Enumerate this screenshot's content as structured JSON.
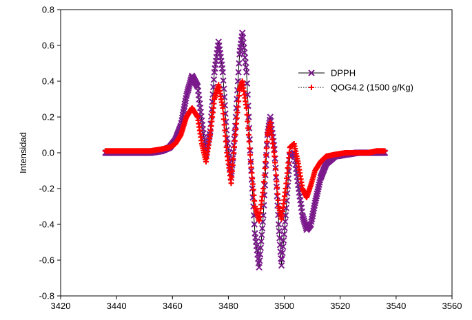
{
  "chart_data": {
    "type": "scatter",
    "title": "",
    "xlabel": "",
    "ylabel": "Intensidad",
    "xlim": [
      3420,
      3560
    ],
    "ylim": [
      -0.8,
      0.8
    ],
    "xticks": [
      3420,
      3440,
      3460,
      3480,
      3500,
      3520,
      3540,
      3560
    ],
    "yticks": [
      -0.8,
      -0.6,
      -0.4,
      -0.2,
      0.0,
      0.2,
      0.4,
      0.6,
      0.8
    ],
    "ytick_labels": [
      "-0.8",
      "-0.6",
      "-0.4",
      "-0.2",
      "0.0",
      "0.2",
      "0.4",
      "0.6",
      "0.8"
    ],
    "grid": false,
    "legend_position": "top-right",
    "series": [
      {
        "name": "DPPH",
        "color": "#7b1a8c",
        "marker": "x",
        "line": "solid",
        "points": [
          [
            3436,
            0.0
          ],
          [
            3440,
            0.0
          ],
          [
            3444,
            0.0
          ],
          [
            3448,
            0.0
          ],
          [
            3452,
            0.0
          ],
          [
            3456,
            0.01
          ],
          [
            3459,
            0.03
          ],
          [
            3461,
            0.07
          ],
          [
            3463,
            0.15
          ],
          [
            3465,
            0.32
          ],
          [
            3467,
            0.43
          ],
          [
            3469,
            0.37
          ],
          [
            3470.5,
            0.18
          ],
          [
            3472,
            -0.01
          ],
          [
            3473.5,
            0.12
          ],
          [
            3475,
            0.45
          ],
          [
            3476.5,
            0.62
          ],
          [
            3478,
            0.45
          ],
          [
            3479.5,
            0.08
          ],
          [
            3481,
            -0.14
          ],
          [
            3482.5,
            0.15
          ],
          [
            3484,
            0.55
          ],
          [
            3485,
            0.67
          ],
          [
            3486.5,
            0.45
          ],
          [
            3488,
            -0.05
          ],
          [
            3489.5,
            -0.45
          ],
          [
            3491,
            -0.64
          ],
          [
            3492.5,
            -0.35
          ],
          [
            3494,
            0.1
          ],
          [
            3495,
            0.2
          ],
          [
            3496.5,
            0.02
          ],
          [
            3498,
            -0.4
          ],
          [
            3499,
            -0.63
          ],
          [
            3500.5,
            -0.35
          ],
          [
            3502,
            -0.02
          ],
          [
            3503.5,
            0.0
          ],
          [
            3505,
            -0.18
          ],
          [
            3506.5,
            -0.35
          ],
          [
            3508,
            -0.43
          ],
          [
            3509.5,
            -0.4
          ],
          [
            3511,
            -0.28
          ],
          [
            3513,
            -0.14
          ],
          [
            3515,
            -0.06
          ],
          [
            3518,
            -0.02
          ],
          [
            3522,
            -0.01
          ],
          [
            3526,
            0.0
          ],
          [
            3530,
            0.0
          ],
          [
            3533,
            0.0
          ],
          [
            3536,
            0.0
          ]
        ]
      },
      {
        "name": "QOG4.2 (1500 g/Kg)",
        "color": "#ff0000",
        "marker": "+",
        "line": "dotted",
        "points": [
          [
            3436,
            0.01
          ],
          [
            3440,
            0.01
          ],
          [
            3444,
            0.01
          ],
          [
            3448,
            0.01
          ],
          [
            3452,
            0.01
          ],
          [
            3456,
            0.02
          ],
          [
            3459,
            0.03
          ],
          [
            3461,
            0.05
          ],
          [
            3463,
            0.1
          ],
          [
            3465,
            0.2
          ],
          [
            3467,
            0.25
          ],
          [
            3469,
            0.2
          ],
          [
            3470.5,
            0.05
          ],
          [
            3472,
            -0.05
          ],
          [
            3473.5,
            0.1
          ],
          [
            3475,
            0.3
          ],
          [
            3476.5,
            0.38
          ],
          [
            3478,
            0.25
          ],
          [
            3479.5,
            0.0
          ],
          [
            3481,
            -0.17
          ],
          [
            3482.5,
            0.1
          ],
          [
            3484,
            0.35
          ],
          [
            3485,
            0.4
          ],
          [
            3486.5,
            0.25
          ],
          [
            3488,
            -0.05
          ],
          [
            3489.5,
            -0.3
          ],
          [
            3491,
            -0.38
          ],
          [
            3492.5,
            -0.2
          ],
          [
            3494,
            0.1
          ],
          [
            3495,
            0.17
          ],
          [
            3496.5,
            -0.02
          ],
          [
            3498,
            -0.3
          ],
          [
            3499,
            -0.37
          ],
          [
            3500.5,
            -0.2
          ],
          [
            3502,
            0.03
          ],
          [
            3503.5,
            0.05
          ],
          [
            3505,
            -0.06
          ],
          [
            3506.5,
            -0.2
          ],
          [
            3508,
            -0.25
          ],
          [
            3509.5,
            -0.18
          ],
          [
            3511,
            -0.1
          ],
          [
            3513,
            -0.05
          ],
          [
            3515,
            -0.02
          ],
          [
            3518,
            -0.01
          ],
          [
            3522,
            0.0
          ],
          [
            3526,
            0.0
          ],
          [
            3530,
            0.0
          ],
          [
            3533,
            0.01
          ],
          [
            3536,
            0.01
          ]
        ]
      }
    ]
  }
}
